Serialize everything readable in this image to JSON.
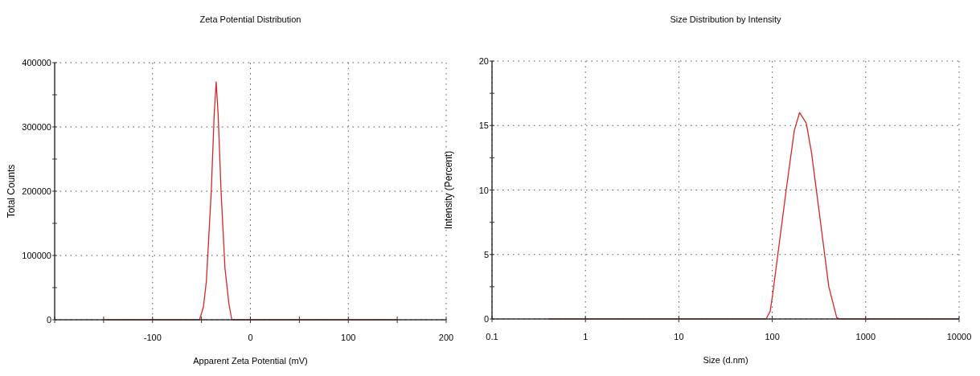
{
  "chart_data": [
    {
      "type": "line",
      "title": "Zeta Potential Distribution",
      "xlabel": "Apparent Zeta Potential (mV)",
      "ylabel": "Total Counts",
      "color": "#d62728",
      "grid": true,
      "x": [
        -150,
        -52,
        -48,
        -45,
        -40,
        -37,
        -35,
        -33,
        -30,
        -26,
        -22,
        -19,
        150
      ],
      "values": [
        0,
        0,
        20000,
        60000,
        200000,
        320000,
        370000,
        320000,
        200000,
        80000,
        25000,
        0,
        0
      ],
      "xlim": [
        -200,
        200
      ],
      "xticks": [
        {
          "value": -200,
          "label": null
        },
        {
          "value": -150,
          "label": null
        },
        -100,
        {
          "value": -50,
          "label": null
        },
        0,
        {
          "value": 50,
          "label": null
        },
        100,
        {
          "value": 150,
          "label": null
        },
        200
      ],
      "ylim": [
        0,
        400000
      ],
      "yticks": [
        0,
        {
          "value": 50000,
          "label": null
        },
        100000,
        {
          "value": 150000,
          "label": null
        },
        200000,
        {
          "value": 250000,
          "label": null
        },
        300000,
        {
          "value": 350000,
          "label": null
        },
        400000
      ]
    },
    {
      "type": "line",
      "title": "Size Distribution by Intensity",
      "xlabel": "Size (d.nm)",
      "ylabel": "Intensity (Percent)",
      "color": "#d62728",
      "grid": true,
      "log": "x",
      "x": [
        0.4,
        86,
        95,
        101,
        141,
        172,
        196,
        231,
        263,
        309,
        403,
        490,
        530,
        10000
      ],
      "values": [
        0,
        0,
        0.6,
        1.9,
        10,
        14.6,
        16,
        15.2,
        12.9,
        9,
        2.5,
        0.1,
        0,
        0
      ],
      "xlim": [
        0.1,
        10000
      ],
      "xticks": [
        0.1,
        1,
        10,
        100,
        1000,
        10000
      ],
      "ylim": [
        0,
        20
      ],
      "yticks": [
        0,
        {
          "value": 2.5,
          "label": null
        },
        5,
        {
          "value": 7.5,
          "label": null
        },
        10,
        {
          "value": 12.5,
          "label": null
        },
        15,
        {
          "value": 17.5,
          "label": null
        },
        20
      ]
    }
  ]
}
